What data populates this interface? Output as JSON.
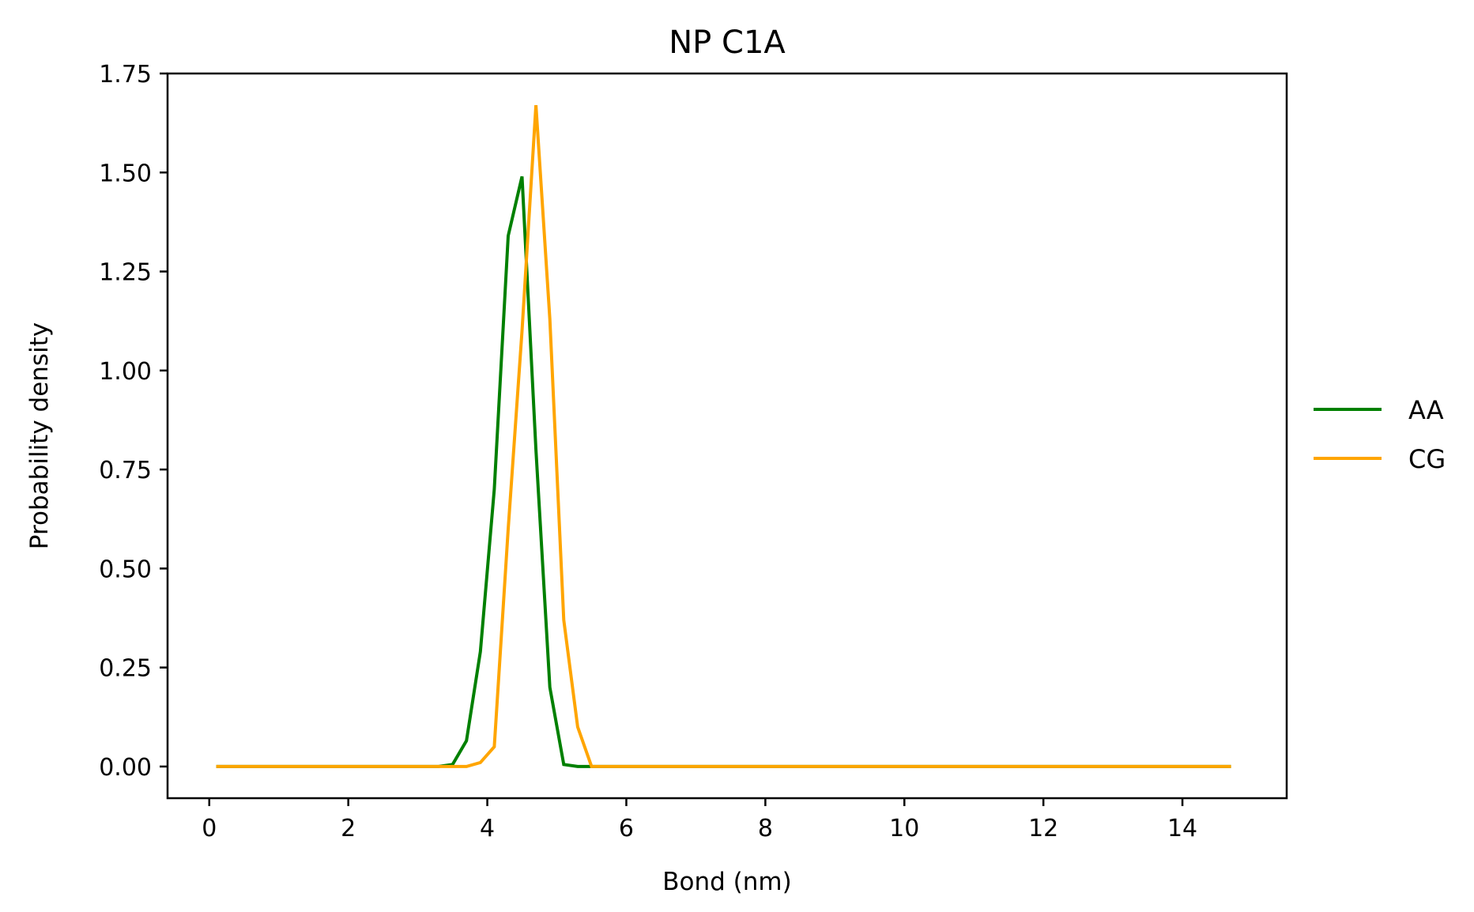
{
  "chart_data": {
    "type": "line",
    "title": "NP C1A",
    "xlabel": "Bond (nm)",
    "ylabel": "Probability density",
    "xlim": [
      -0.6,
      15.5
    ],
    "ylim": [
      -0.08,
      1.75
    ],
    "xticks": [
      0,
      2,
      4,
      6,
      8,
      10,
      12,
      14
    ],
    "yticks": [
      0.0,
      0.25,
      0.5,
      0.75,
      1.0,
      1.25,
      1.5,
      1.75
    ],
    "xtick_labels": [
      "0",
      "2",
      "4",
      "6",
      "8",
      "10",
      "12",
      "14"
    ],
    "ytick_labels": [
      "0.00",
      "0.25",
      "0.50",
      "0.75",
      "1.00",
      "1.25",
      "1.50",
      "1.75"
    ],
    "grid": false,
    "legend_position": "outside-right",
    "series": [
      {
        "name": "AA",
        "color": "#008000",
        "x": [
          0.1,
          3.3,
          3.5,
          3.7,
          3.9,
          4.1,
          4.3,
          4.5,
          4.7,
          4.9,
          5.1,
          5.3,
          5.5,
          14.7
        ],
        "y": [
          0.0,
          0.0,
          0.005,
          0.065,
          0.29,
          0.7,
          1.34,
          1.49,
          0.8,
          0.2,
          0.005,
          0.0,
          0.0,
          0.0
        ]
      },
      {
        "name": "CG",
        "color": "#FFA500",
        "x": [
          0.1,
          3.5,
          3.7,
          3.9,
          4.1,
          4.3,
          4.5,
          4.7,
          4.9,
          5.1,
          5.3,
          5.5,
          14.7
        ],
        "y": [
          0.0,
          0.0,
          0.0,
          0.01,
          0.05,
          0.6,
          1.1,
          1.67,
          1.13,
          0.37,
          0.1,
          0.0,
          0.0
        ]
      }
    ]
  }
}
